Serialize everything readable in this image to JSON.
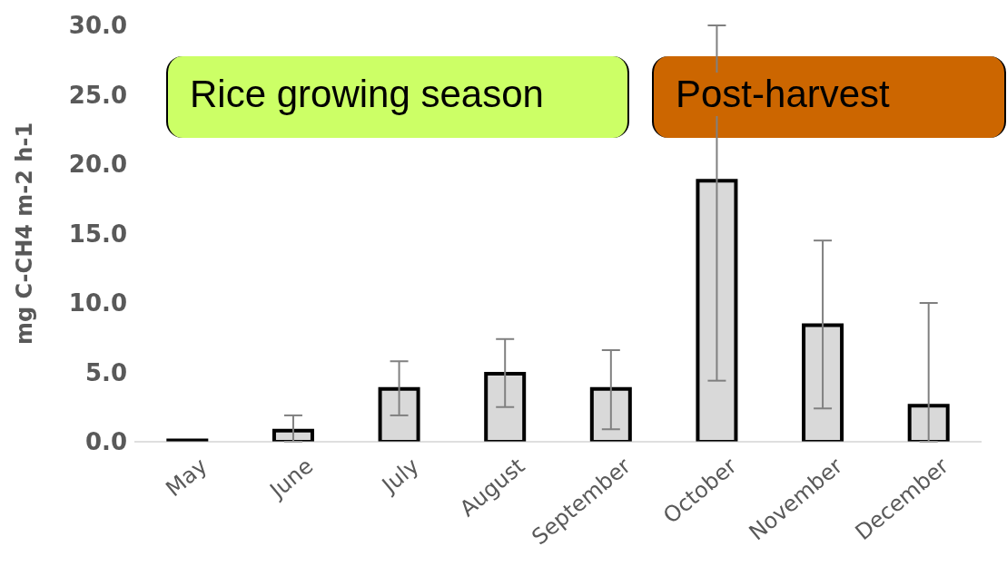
{
  "chart_data": {
    "type": "bar",
    "ylabel": "mg C-CH4 m-2 h-1",
    "categories": [
      "May",
      "June",
      "July",
      "August",
      "September",
      "October",
      "November",
      "December"
    ],
    "values": [
      0.1,
      0.8,
      3.8,
      4.9,
      3.8,
      18.8,
      8.4,
      2.6
    ],
    "errors": [
      null,
      [
        0,
        1.9
      ],
      [
        1.9,
        5.8
      ],
      [
        2.5,
        7.4
      ],
      [
        0.9,
        6.6
      ],
      [
        4.4,
        30.0
      ],
      [
        2.4,
        14.5
      ],
      [
        0,
        10.0
      ]
    ],
    "color": "#d9d9d9",
    "ylim": [
      0,
      30
    ],
    "yticks": [
      {
        "value": 0,
        "label": "0.0"
      },
      {
        "value": 5,
        "label": "5.0"
      },
      {
        "value": 10,
        "label": "10.0"
      },
      {
        "value": 15,
        "label": "15.0"
      },
      {
        "value": 20,
        "label": "20.0"
      },
      {
        "value": 25,
        "label": "25.0"
      },
      {
        "value": 30,
        "label": "30.0"
      }
    ],
    "annotations": [
      "Rice growing season",
      "Post-harvest"
    ],
    "grid": false,
    "legend": false
  }
}
